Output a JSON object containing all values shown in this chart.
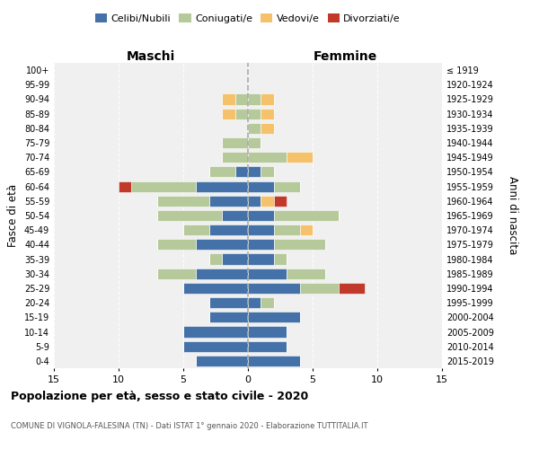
{
  "age_groups": [
    "0-4",
    "5-9",
    "10-14",
    "15-19",
    "20-24",
    "25-29",
    "30-34",
    "35-39",
    "40-44",
    "45-49",
    "50-54",
    "55-59",
    "60-64",
    "65-69",
    "70-74",
    "75-79",
    "80-84",
    "85-89",
    "90-94",
    "95-99",
    "100+"
  ],
  "birth_years": [
    "2015-2019",
    "2010-2014",
    "2005-2009",
    "2000-2004",
    "1995-1999",
    "1990-1994",
    "1985-1989",
    "1980-1984",
    "1975-1979",
    "1970-1974",
    "1965-1969",
    "1960-1964",
    "1955-1959",
    "1950-1954",
    "1945-1949",
    "1940-1944",
    "1935-1939",
    "1930-1934",
    "1925-1929",
    "1920-1924",
    "≤ 1919"
  ],
  "maschi": {
    "celibi": [
      4,
      5,
      5,
      3,
      3,
      5,
      4,
      2,
      4,
      3,
      2,
      3,
      4,
      1,
      0,
      0,
      0,
      0,
      0,
      0,
      0
    ],
    "coniugati": [
      0,
      0,
      0,
      0,
      0,
      0,
      3,
      1,
      3,
      2,
      5,
      4,
      5,
      2,
      2,
      2,
      0,
      1,
      1,
      0,
      0
    ],
    "vedovi": [
      0,
      0,
      0,
      0,
      0,
      0,
      0,
      0,
      0,
      0,
      0,
      0,
      0,
      0,
      0,
      0,
      0,
      1,
      1,
      0,
      0
    ],
    "divorziati": [
      0,
      0,
      0,
      0,
      0,
      0,
      0,
      0,
      0,
      0,
      0,
      0,
      1,
      0,
      0,
      0,
      0,
      0,
      0,
      0,
      0
    ]
  },
  "femmine": {
    "nubili": [
      4,
      3,
      3,
      4,
      1,
      4,
      3,
      2,
      2,
      2,
      2,
      1,
      2,
      1,
      0,
      0,
      0,
      0,
      0,
      0,
      0
    ],
    "coniugate": [
      0,
      0,
      0,
      0,
      1,
      3,
      3,
      1,
      4,
      2,
      5,
      0,
      2,
      1,
      3,
      1,
      1,
      1,
      1,
      0,
      0
    ],
    "vedove": [
      0,
      0,
      0,
      0,
      0,
      0,
      0,
      0,
      0,
      1,
      0,
      1,
      0,
      0,
      2,
      0,
      1,
      1,
      1,
      0,
      0
    ],
    "divorziate": [
      0,
      0,
      0,
      0,
      0,
      2,
      0,
      0,
      0,
      0,
      0,
      1,
      0,
      0,
      0,
      0,
      0,
      0,
      0,
      0,
      0
    ]
  },
  "colors": {
    "celibi": "#4472a8",
    "coniugati": "#b5c99a",
    "vedovi": "#f5c26b",
    "divorziati": "#c0392b"
  },
  "xlim": 15,
  "title": "Popolazione per età, sesso e stato civile - 2020",
  "subtitle": "COMUNE DI VIGNOLA-FALESINA (TN) - Dati ISTAT 1° gennaio 2020 - Elaborazione TUTTITALIA.IT",
  "ylabel_left": "Fasce di età",
  "ylabel_right": "Anni di nascita",
  "xlabel_left": "Maschi",
  "xlabel_right": "Femmine"
}
